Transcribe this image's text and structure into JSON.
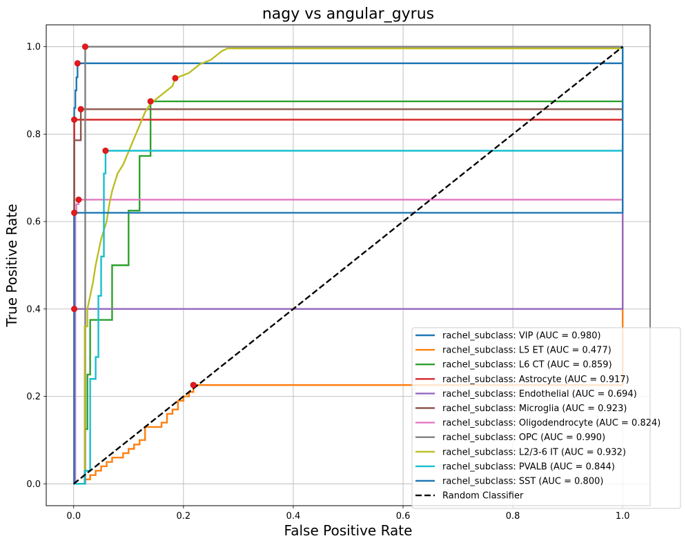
{
  "chart_data": {
    "type": "line",
    "title": "nagy vs angular_gyrus",
    "xlabel": "False Positive Rate",
    "ylabel": "True Positive Rate",
    "xlim": [
      -0.05,
      1.05
    ],
    "ylim": [
      -0.05,
      1.05
    ],
    "xticks": [
      0.0,
      0.2,
      0.4,
      0.6,
      0.8,
      1.0
    ],
    "yticks": [
      0.0,
      0.2,
      0.4,
      0.6,
      0.8,
      1.0
    ],
    "xtick_labels": [
      "0.0",
      "0.2",
      "0.4",
      "0.6",
      "0.8",
      "1.0"
    ],
    "ytick_labels": [
      "0.0",
      "0.2",
      "0.4",
      "0.6",
      "0.8",
      "1.0"
    ],
    "grid": true,
    "legend_position": "lower-right",
    "series": [
      {
        "name": "rachel_subclass: VIP (AUC = 0.980)",
        "color": "#1f77b4",
        "x": [
          0,
          0.001,
          0.001,
          0.003,
          0.003,
          0.005,
          0.005,
          0.007,
          0.007,
          1.0,
          1.0
        ],
        "y": [
          0,
          0,
          0.86,
          0.86,
          0.9,
          0.9,
          0.93,
          0.93,
          0.962,
          0.962,
          1.0
        ],
        "marker": [
          0.007,
          0.962
        ]
      },
      {
        "name": "rachel_subclass: L5 ET (AUC = 0.477)",
        "color": "#ff7f0e",
        "x": [
          0,
          0.02,
          0.02,
          0.03,
          0.03,
          0.04,
          0.04,
          0.05,
          0.05,
          0.06,
          0.06,
          0.07,
          0.07,
          0.09,
          0.09,
          0.1,
          0.1,
          0.11,
          0.11,
          0.12,
          0.12,
          0.13,
          0.13,
          0.16,
          0.16,
          0.17,
          0.17,
          0.18,
          0.18,
          0.19,
          0.19,
          0.2,
          0.2,
          0.21,
          0.21,
          0.218,
          0.218,
          1.0,
          1.0
        ],
        "y": [
          0,
          0,
          0.01,
          0.01,
          0.02,
          0.02,
          0.03,
          0.03,
          0.04,
          0.04,
          0.05,
          0.05,
          0.06,
          0.06,
          0.07,
          0.07,
          0.08,
          0.08,
          0.09,
          0.09,
          0.1,
          0.1,
          0.13,
          0.13,
          0.14,
          0.14,
          0.16,
          0.16,
          0.17,
          0.17,
          0.19,
          0.19,
          0.2,
          0.2,
          0.21,
          0.21,
          0.226,
          0.226,
          1.0
        ],
        "marker": [
          0.218,
          0.226
        ]
      },
      {
        "name": "rachel_subclass: L6 CT (AUC = 0.859)",
        "color": "#2ca02c",
        "x": [
          0,
          0.02,
          0.02,
          0.025,
          0.025,
          0.03,
          0.03,
          0.07,
          0.07,
          0.1,
          0.1,
          0.12,
          0.12,
          0.14,
          0.14,
          1.0,
          1.0
        ],
        "y": [
          0,
          0,
          0.125,
          0.125,
          0.25,
          0.25,
          0.375,
          0.375,
          0.5,
          0.5,
          0.625,
          0.625,
          0.75,
          0.75,
          0.875,
          0.875,
          1.0
        ],
        "marker": [
          0.14,
          0.875
        ]
      },
      {
        "name": "rachel_subclass: Astrocyte (AUC = 0.917)",
        "color": "#d62728",
        "x": [
          0,
          0.001,
          0.001,
          1.0,
          1.0
        ],
        "y": [
          0,
          0,
          0.833,
          0.833,
          1.0
        ],
        "marker": [
          0.001,
          0.833
        ]
      },
      {
        "name": "rachel_subclass: Endothelial (AUC = 0.694)",
        "color": "#9467bd",
        "x": [
          0,
          0.001,
          0.001,
          1.0,
          1.0
        ],
        "y": [
          0,
          0,
          0.4,
          0.4,
          1.0
        ],
        "marker": [
          0.001,
          0.4
        ]
      },
      {
        "name": "rachel_subclass: Microglia (AUC = 0.923)",
        "color": "#8c564b",
        "x": [
          0,
          0.001,
          0.001,
          0.003,
          0.003,
          0.013,
          0.013,
          1.0,
          1.0
        ],
        "y": [
          0,
          0,
          0.786,
          0.786,
          0.786,
          0.786,
          0.857,
          0.857,
          1.0
        ],
        "marker": [
          0.013,
          0.857
        ]
      },
      {
        "name": "rachel_subclass: Oligodendrocyte (AUC = 0.824)",
        "color": "#e377c2",
        "x": [
          0,
          0.003,
          0.003,
          0.005,
          0.005,
          0.009,
          0.009,
          1.0,
          1.0
        ],
        "y": [
          0,
          0,
          0.62,
          0.62,
          0.64,
          0.64,
          0.65,
          0.65,
          1.0
        ],
        "marker": [
          0.009,
          0.65
        ]
      },
      {
        "name": "rachel_subclass: OPC (AUC = 0.990)",
        "color": "#7f7f7f",
        "x": [
          0,
          0.021,
          0.021,
          1.0,
          1.0
        ],
        "y": [
          0,
          0,
          1.0,
          1.0,
          1.0
        ],
        "marker": [
          0.021,
          1.0
        ]
      },
      {
        "name": "rachel_subclass: L2/3-6 IT (AUC = 0.932)",
        "color": "#bcbd22",
        "x": [
          0,
          0.02,
          0.02,
          0.025,
          0.025,
          0.03,
          0.035,
          0.04,
          0.045,
          0.05,
          0.055,
          0.06,
          0.065,
          0.07,
          0.075,
          0.08,
          0.09,
          0.1,
          0.11,
          0.12,
          0.13,
          0.14,
          0.15,
          0.16,
          0.17,
          0.18,
          0.185,
          0.19,
          0.2,
          0.21,
          0.22,
          0.23,
          0.24,
          0.25,
          0.26,
          0.27,
          0.28,
          0.3,
          0.5,
          1.0
        ],
        "y": [
          0,
          0,
          0.36,
          0.36,
          0.4,
          0.43,
          0.46,
          0.5,
          0.53,
          0.56,
          0.58,
          0.6,
          0.64,
          0.67,
          0.69,
          0.71,
          0.73,
          0.76,
          0.79,
          0.82,
          0.85,
          0.87,
          0.88,
          0.89,
          0.9,
          0.91,
          0.928,
          0.93,
          0.935,
          0.94,
          0.95,
          0.96,
          0.965,
          0.97,
          0.98,
          0.99,
          0.996,
          0.996,
          0.996,
          0.996
        ],
        "marker": [
          0.185,
          0.928
        ]
      },
      {
        "name": "rachel_subclass: PVALB (AUC = 0.844)",
        "color": "#17becf",
        "x": [
          0,
          0.02,
          0.02,
          0.03,
          0.03,
          0.04,
          0.04,
          0.045,
          0.045,
          0.05,
          0.05,
          0.055,
          0.055,
          0.058,
          0.058,
          1.0,
          1.0
        ],
        "y": [
          0,
          0,
          0.03,
          0.03,
          0.24,
          0.24,
          0.29,
          0.29,
          0.43,
          0.43,
          0.52,
          0.52,
          0.71,
          0.71,
          0.762,
          0.762,
          1.0
        ],
        "marker": [
          0.058,
          0.762
        ]
      },
      {
        "name": "rachel_subclass: SST (AUC = 0.800)",
        "color": "#1f77b4",
        "x": [
          0,
          0.001,
          0.001,
          1.0,
          1.0
        ],
        "y": [
          0,
          0,
          0.62,
          0.62,
          1.0
        ],
        "marker": [
          0.001,
          0.62
        ]
      },
      {
        "name": "Random Classifier",
        "color": "#000000",
        "dashed": true,
        "x": [
          0,
          1.0
        ],
        "y": [
          0,
          1.0
        ]
      }
    ]
  }
}
